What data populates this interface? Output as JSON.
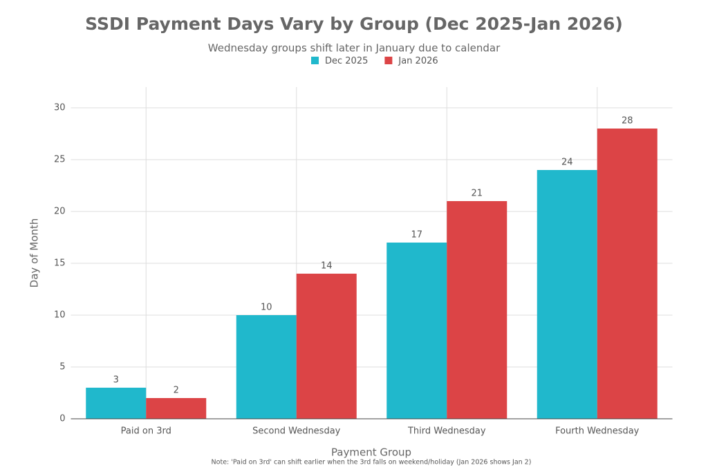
{
  "chart_data": {
    "type": "bar",
    "title": "SSDI Payment Days Vary by Group (Dec 2025-Jan 2026)",
    "subtitle": "Wednesday groups shift later in January due to calendar",
    "x_label": "Payment Group",
    "y_label": "Day of Month",
    "note": "Note: 'Paid on 3rd' can shift earlier when the 3rd falls on weekend/holiday (Jan 2026 shows Jan 2)",
    "categories": [
      "Paid on 3rd",
      "Second Wednesday",
      "Third Wednesday",
      "Fourth Wednesday"
    ],
    "series": [
      {
        "name": "Dec 2025",
        "color": "#20b8cc",
        "values": [
          3,
          10,
          17,
          24
        ]
      },
      {
        "name": "Jan 2026",
        "color": "#dc4446",
        "values": [
          2,
          14,
          21,
          28
        ]
      }
    ],
    "ylim": [
      0,
      32
    ],
    "yticks": [
      0,
      5,
      10,
      15,
      20,
      25,
      30
    ],
    "grid": true,
    "legend": "top"
  }
}
